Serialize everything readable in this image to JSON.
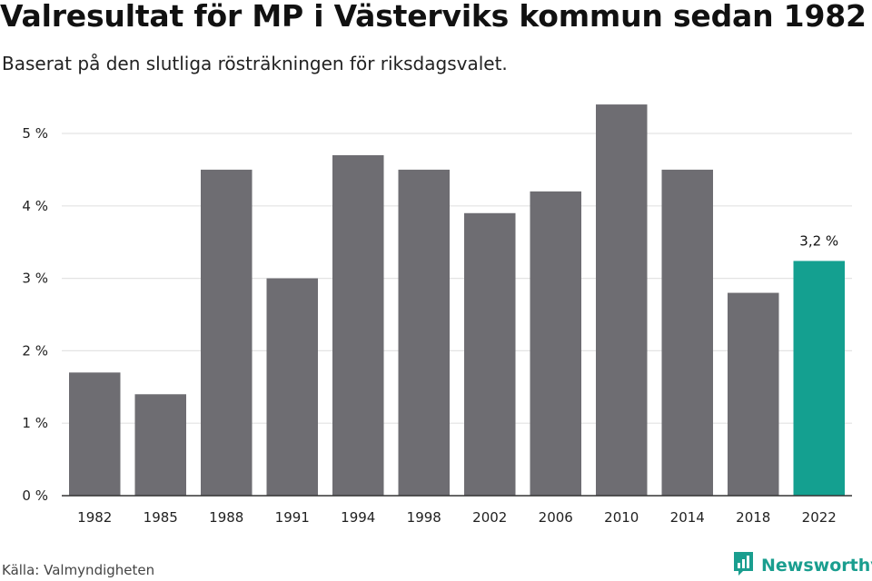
{
  "title": "Valresultat för MP i Västerviks kommun sedan 1982",
  "subtitle": "Baserat på den slutliga rösträkningen för riksdagsvalet.",
  "source": "Källa: Valmyndigheten",
  "brand": {
    "name": "Newsworthy",
    "icon": "newsworthy-logo-icon",
    "color": "#1a9e8f"
  },
  "colors": {
    "bar": "#6e6d72",
    "highlight": "#14a090",
    "grid": "#e3e3e3",
    "axis": "#333333"
  },
  "chart_data": {
    "type": "bar",
    "categories": [
      "1982",
      "1985",
      "1988",
      "1991",
      "1994",
      "1998",
      "2002",
      "2006",
      "2010",
      "2014",
      "2018",
      "2022"
    ],
    "values": [
      1.7,
      1.4,
      4.5,
      3.0,
      4.7,
      4.5,
      3.9,
      4.2,
      5.4,
      4.5,
      2.8,
      3.24
    ],
    "ylim": [
      0,
      5.5
    ],
    "yticks": [
      0,
      1,
      2,
      3,
      4,
      5
    ],
    "ytick_labels": [
      "0 %",
      "1 %",
      "2 %",
      "3 %",
      "4 %",
      "5 %"
    ],
    "highlight_index": 11,
    "annotation": "3,2 %",
    "grid": true,
    "xlabel": "",
    "ylabel": ""
  }
}
